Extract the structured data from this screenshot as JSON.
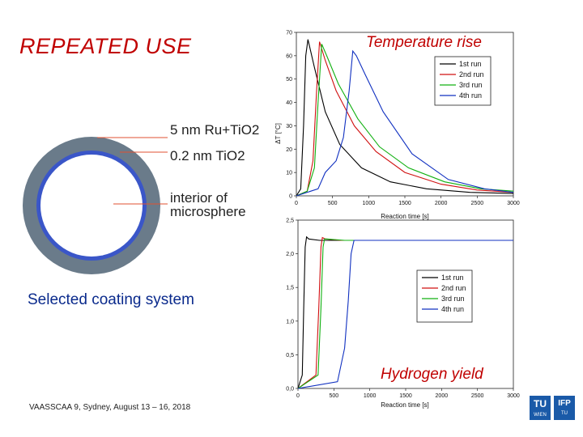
{
  "slide": {
    "title": "REPEATED USE",
    "coating_caption": "Selected coating system",
    "footer": "VAASSCAA 9, Sydney, August 13 – 16, 2018"
  },
  "sphere": {
    "outer_label": "5 nm Ru+TiO2",
    "middle_label": "0.2 nm TiO2",
    "inner_label_line1": "interior of",
    "inner_label_line2": "microsphere",
    "colors": {
      "outer": "#6a7b8a",
      "middle": "#3a56c8",
      "leader": "#e05030"
    }
  },
  "logos": {
    "left_top": "TU",
    "left_bottom": "WIEN",
    "right_top": "IFP",
    "right_bottom": "TU"
  },
  "chart_data": [
    {
      "type": "line",
      "title": "Temperature rise",
      "xlabel": "Reaction time [s]",
      "ylabel": "ΔT [°C]",
      "xlim": [
        0,
        3000
      ],
      "ylim": [
        0,
        70
      ],
      "x_ticks": [
        0,
        500,
        1000,
        1500,
        2000,
        2500,
        3000
      ],
      "y_ticks": [
        0,
        10,
        20,
        30,
        40,
        50,
        60,
        70
      ],
      "legend_position": "top-right",
      "series": [
        {
          "name": "1st run",
          "color": "#000000",
          "x": [
            0,
            60,
            100,
            130,
            160,
            250,
            400,
            600,
            900,
            1300,
            1800,
            2400,
            3000
          ],
          "y": [
            0,
            3,
            30,
            60,
            67,
            55,
            36,
            22,
            12,
            6,
            3,
            1.5,
            1
          ]
        },
        {
          "name": "2nd run",
          "color": "#d01010",
          "x": [
            0,
            150,
            230,
            280,
            320,
            400,
            550,
            800,
            1100,
            1500,
            2000,
            2500,
            3000
          ],
          "y": [
            0,
            2,
            15,
            45,
            66,
            58,
            45,
            30,
            19,
            10,
            5,
            2.5,
            1.5
          ]
        },
        {
          "name": "3rd run",
          "color": "#10b010",
          "x": [
            0,
            150,
            250,
            300,
            350,
            420,
            580,
            850,
            1150,
            1550,
            2050,
            2550,
            3000
          ],
          "y": [
            0,
            2,
            12,
            40,
            65,
            60,
            48,
            33,
            21,
            12,
            6,
            3,
            2
          ]
        },
        {
          "name": "4th run",
          "color": "#1030c0",
          "x": [
            0,
            300,
            400,
            550,
            650,
            730,
            780,
            830,
            950,
            1200,
            1600,
            2100,
            2600,
            3000
          ],
          "y": [
            0,
            3,
            10,
            15,
            25,
            45,
            62,
            60,
            52,
            36,
            18,
            7,
            3,
            1.5
          ]
        }
      ]
    },
    {
      "type": "line",
      "title": "Hydrogen yield",
      "xlabel": "Reaction time [s]",
      "ylabel": "",
      "xlim": [
        0,
        3000
      ],
      "ylim": [
        0,
        2.5
      ],
      "x_ticks": [
        0,
        500,
        1000,
        1500,
        2000,
        2500,
        3000
      ],
      "y_ticks": [
        "0,0",
        "0,5",
        "1,0",
        "1,5",
        "2,0",
        "2,5"
      ],
      "y_tick_values": [
        0,
        0.5,
        1.0,
        1.5,
        2.0,
        2.5
      ],
      "legend_position": "right",
      "series": [
        {
          "name": "1st run",
          "color": "#000000",
          "x": [
            0,
            60,
            80,
            100,
            120,
            150,
            300,
            3000
          ],
          "y": [
            0,
            0.2,
            1.2,
            2.1,
            2.25,
            2.22,
            2.2,
            2.2
          ]
        },
        {
          "name": "2nd run",
          "color": "#d01010",
          "x": [
            0,
            250,
            290,
            320,
            340,
            380,
            600,
            3000
          ],
          "y": [
            0,
            0.2,
            1.2,
            2.1,
            2.24,
            2.22,
            2.2,
            2.2
          ]
        },
        {
          "name": "3rd run",
          "color": "#10b010",
          "x": [
            0,
            280,
            320,
            350,
            370,
            400,
            650,
            3000
          ],
          "y": [
            0,
            0.2,
            1.2,
            2.1,
            2.22,
            2.22,
            2.2,
            2.2
          ]
        },
        {
          "name": "4th run",
          "color": "#1030c0",
          "x": [
            0,
            550,
            650,
            700,
            740,
            780,
            850,
            1000,
            3000
          ],
          "y": [
            0,
            0.1,
            0.6,
            1.3,
            2.0,
            2.2,
            2.2,
            2.2,
            2.2
          ]
        }
      ]
    }
  ]
}
